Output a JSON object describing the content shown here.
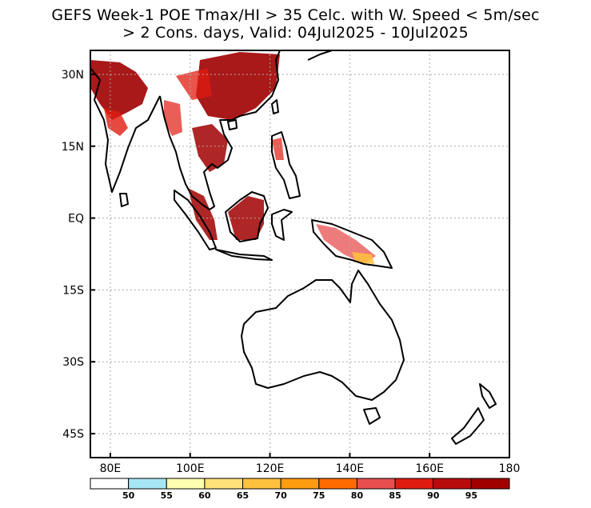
{
  "title": {
    "line1": "GEFS Week-1 POE Tmax/HI > 35 Celc. with W. Speed < 5m/sec",
    "line2": "> 2 Cons. days, Valid: 04Jul2025 - 10Jul2025"
  },
  "map": {
    "lon_range": [
      75,
      180
    ],
    "lat_range": [
      -50,
      35
    ],
    "x_ticks": [
      {
        "value": 80,
        "label": "80E"
      },
      {
        "value": 100,
        "label": "100E"
      },
      {
        "value": 120,
        "label": "120E"
      },
      {
        "value": 140,
        "label": "140E"
      },
      {
        "value": 160,
        "label": "160E"
      },
      {
        "value": 180,
        "label": "180"
      }
    ],
    "y_ticks": [
      {
        "value": 30,
        "label": "30N"
      },
      {
        "value": 15,
        "label": "15N"
      },
      {
        "value": 0,
        "label": "EQ"
      },
      {
        "value": -15,
        "label": "15S"
      },
      {
        "value": -30,
        "label": "30S"
      },
      {
        "value": -45,
        "label": "45S"
      }
    ],
    "grid": "dotted"
  },
  "colorbar": {
    "boundaries": [
      "50",
      "55",
      "60",
      "65",
      "70",
      "75",
      "80",
      "85",
      "90",
      "95"
    ],
    "colors": [
      "#ffffff",
      "#a8e6f5",
      "#ffffb0",
      "#ffe27a",
      "#ffc23c",
      "#ff9d10",
      "#ff6a00",
      "#e84f4f",
      "#e01b10",
      "#b80c0c",
      "#a00000"
    ]
  }
}
